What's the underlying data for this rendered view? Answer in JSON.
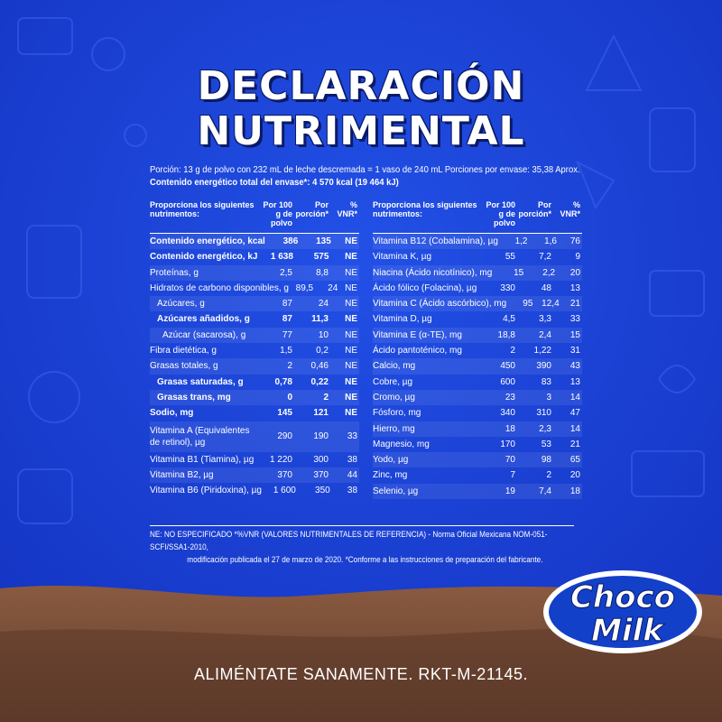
{
  "title_line1": "DECLARACIÓN",
  "title_line2": "NUTRIMENTAL",
  "portion": "Porción: 13 g de polvo con 232 mL de leche descremada = 1 vaso de 240 mL   Porciones por envase: 35,38 Aprox.",
  "energy_total": "Contenido energético total del envase*: 4 570 kcal   (19 464 kJ)",
  "left_table": {
    "header": [
      "Proporciona los siguientes nutrimentos:",
      "Por 100 g de polvo",
      "Por porción*",
      "% VNR*"
    ],
    "rows": [
      {
        "name": "Contenido energético, kcal",
        "a": "386",
        "b": "135",
        "c": "NE",
        "style": "bold"
      },
      {
        "name": "Contenido energético, kJ",
        "a": "1 638",
        "b": "575",
        "c": "NE",
        "style": "bold"
      },
      {
        "name": "Proteínas, g",
        "a": "2,5",
        "b": "8,8",
        "c": "NE",
        "style": ""
      },
      {
        "name": "Hidratos de carbono disponibles, g",
        "a": "89,5",
        "b": "24",
        "c": "NE",
        "style": ""
      },
      {
        "name": "Azúcares, g",
        "a": "87",
        "b": "24",
        "c": "NE",
        "style": "ind1"
      },
      {
        "name": "Azúcares añadidos, g",
        "a": "87",
        "b": "11,3",
        "c": "NE",
        "style": "bold ind1"
      },
      {
        "name": "Azúcar (sacarosa), g",
        "a": "77",
        "b": "10",
        "c": "NE",
        "style": "ind2"
      },
      {
        "name": "Fibra dietética, g",
        "a": "1,5",
        "b": "0,2",
        "c": "NE",
        "style": ""
      },
      {
        "name": "Grasas totales, g",
        "a": "2",
        "b": "0,46",
        "c": "NE",
        "style": ""
      },
      {
        "name": "Grasas saturadas, g",
        "a": "0,78",
        "b": "0,22",
        "c": "NE",
        "style": "bold ind1"
      },
      {
        "name": "Grasas trans, mg",
        "a": "0",
        "b": "2",
        "c": "NE",
        "style": "bold ind1"
      },
      {
        "name": "Sodio, mg",
        "a": "145",
        "b": "121",
        "c": "NE",
        "style": "bold"
      },
      {
        "name": "Vitamina A (Equivalentes de retinol), µg",
        "a": "290",
        "b": "190",
        "c": "33",
        "style": "tall"
      },
      {
        "name": "Vitamina B1 (Tiamina), µg",
        "a": "1 220",
        "b": "300",
        "c": "38",
        "style": ""
      },
      {
        "name": "Vitamina B2, µg",
        "a": "370",
        "b": "370",
        "c": "44",
        "style": ""
      },
      {
        "name": "Vitamina B6 (Piridoxina), µg",
        "a": "1 600",
        "b": "350",
        "c": "38",
        "style": ""
      }
    ]
  },
  "right_table": {
    "header": [
      "Proporciona los siguientes nutrimentos:",
      "Por 100 g de polvo",
      "Por porción*",
      "% VNR*"
    ],
    "rows": [
      {
        "name": "Vitamina B12 (Cobalamina), µg",
        "a": "1,2",
        "b": "1,6",
        "c": "76"
      },
      {
        "name": "Vitamina K, µg",
        "a": "55",
        "b": "7,2",
        "c": "9"
      },
      {
        "name": "Niacina (Ácido nicotínico), mg",
        "a": "15",
        "b": "2,2",
        "c": "20"
      },
      {
        "name": "Ácido fólico (Folacina), µg",
        "a": "330",
        "b": "48",
        "c": "13"
      },
      {
        "name": "Vitamina C (Ácido ascórbico), mg",
        "a": "95",
        "b": "12,4",
        "c": "21"
      },
      {
        "name": "Vitamina D, µg",
        "a": "4,5",
        "b": "3,3",
        "c": "33"
      },
      {
        "name": "Vitamina E (α-TE), mg",
        "a": "18,8",
        "b": "2,4",
        "c": "15"
      },
      {
        "name": "Ácido pantoténico, mg",
        "a": "2",
        "b": "1,22",
        "c": "31"
      },
      {
        "name": "Calcio, mg",
        "a": "450",
        "b": "390",
        "c": "43"
      },
      {
        "name": "Cobre, µg",
        "a": "600",
        "b": "83",
        "c": "13"
      },
      {
        "name": "Cromo, µg",
        "a": "23",
        "b": "3",
        "c": "14"
      },
      {
        "name": "Fósforo, mg",
        "a": "340",
        "b": "310",
        "c": "47"
      },
      {
        "name": "Hierro, mg",
        "a": "18",
        "b": "2,3",
        "c": "14"
      },
      {
        "name": "Magnesio, mg",
        "a": "170",
        "b": "53",
        "c": "21"
      },
      {
        "name": "Yodo, µg",
        "a": "70",
        "b": "98",
        "c": "65"
      },
      {
        "name": "Zinc, mg",
        "a": "7",
        "b": "2",
        "c": "20"
      },
      {
        "name": "Selenio, µg",
        "a": "19",
        "b": "7,4",
        "c": "18"
      }
    ]
  },
  "footnote_line1": "NE: NO ESPECIFICADO   *%VNR (VALORES NUTRIMENTALES DE REFERENCIA) - Norma Oficial Mexicana NOM-051-SCFI/SSA1-2010,",
  "footnote_line2": "modificación publicada el 27 de marzo de 2020. *Conforme a las instrucciones de preparación del fabricante.",
  "logo_text_1": "Choco",
  "logo_text_2": "Milk",
  "slogan": "ALIMÉNTATE SANAMENTE. RKT-M-21145.",
  "colors": {
    "background": "#1a3fd6",
    "chocolate": "#6b4532",
    "logo_blue": "#1240c8"
  }
}
